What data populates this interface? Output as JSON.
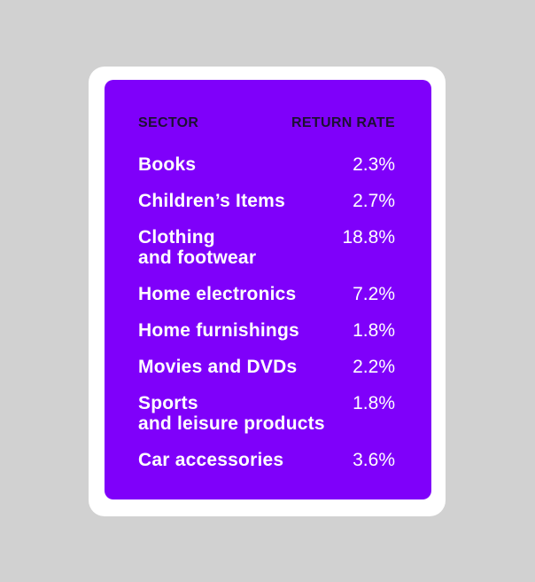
{
  "colors": {
    "background": "#d1d1d1",
    "card": "#ffffff",
    "panel_purple": "#7f00fa",
    "header_text": "#1d1033",
    "row_text": "#ffffff"
  },
  "table": {
    "headers": {
      "sector": "SECTOR",
      "return_rate": "RETURN RATE"
    },
    "rows": [
      {
        "sector": "Books",
        "rate": "2.3%"
      },
      {
        "sector": "Children’s Items",
        "rate": "2.7%"
      },
      {
        "sector": "Clothing\nand footwear",
        "rate": "18.8%"
      },
      {
        "sector": "Home electronics",
        "rate": "7.2%"
      },
      {
        "sector": "Home furnishings",
        "rate": "1.8%"
      },
      {
        "sector": "Movies and DVDs",
        "rate": "2.2%"
      },
      {
        "sector": "Sports\nand leisure products",
        "rate": "1.8%"
      },
      {
        "sector": "Car accessories",
        "rate": "3.6%"
      }
    ]
  },
  "chart_data": {
    "type": "table",
    "title": "",
    "columns": [
      "SECTOR",
      "RETURN RATE"
    ],
    "categories": [
      "Books",
      "Children’s Items",
      "Clothing and footwear",
      "Home electronics",
      "Home furnishings",
      "Movies and DVDs",
      "Sports and leisure products",
      "Car accessories"
    ],
    "values": [
      2.3,
      2.7,
      18.8,
      7.2,
      1.8,
      2.2,
      1.8,
      3.6
    ],
    "value_unit": "%"
  }
}
